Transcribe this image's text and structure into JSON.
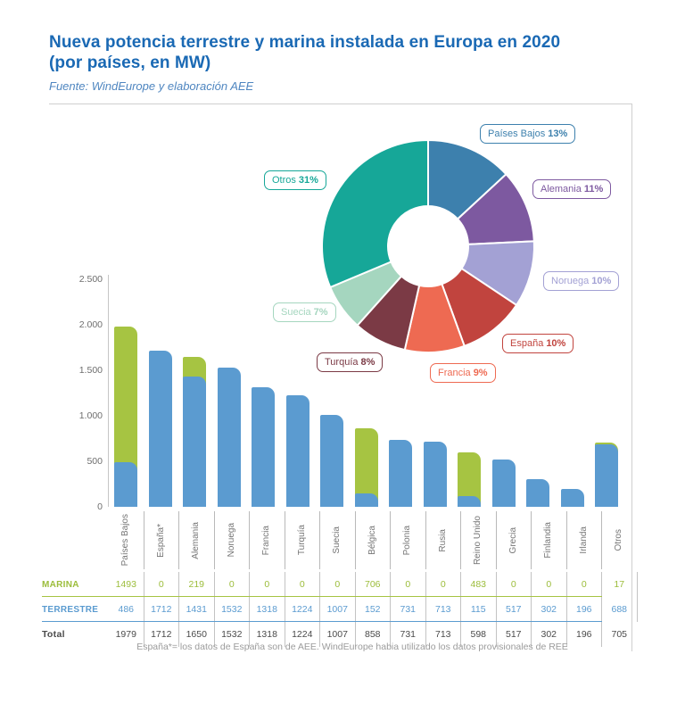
{
  "header": {
    "title_line1": "Nueva potencia terrestre y marina instalada en Europa en 2020",
    "title_line2": "(por países, en MW)",
    "source": "Fuente: WindEurope y elaboración AEE",
    "title_color": "#1a69b4"
  },
  "chart_data": [
    {
      "type": "pie",
      "donut": true,
      "direction": "clockwise",
      "start_angle_deg": 0,
      "slices": [
        {
          "name": "Países Bajos",
          "value": 13,
          "pct_label": "13%",
          "color": "#3d80ad"
        },
        {
          "name": "Alemania",
          "value": 11,
          "pct_label": "11%",
          "color": "#7d59a0"
        },
        {
          "name": "Noruega",
          "value": 10,
          "pct_label": "10%",
          "color": "#a3a1d4"
        },
        {
          "name": "España",
          "value": 10,
          "pct_label": "10%",
          "color": "#c1443e"
        },
        {
          "name": "Francia",
          "value": 9,
          "pct_label": "9%",
          "color": "#ee6a52"
        },
        {
          "name": "Turquía",
          "value": 8,
          "pct_label": "8%",
          "color": "#7b3a45"
        },
        {
          "name": "Suecia",
          "value": 7,
          "pct_label": "7%",
          "color": "#a5d6bf"
        },
        {
          "name": "Otros",
          "value": 31,
          "pct_label": "31%",
          "color": "#16a798"
        }
      ]
    },
    {
      "type": "bar",
      "stacked": true,
      "categories": [
        "Países Bajos",
        "España*",
        "Alemania",
        "Noruega",
        "Francia",
        "Turquía",
        "Suecia",
        "Bélgica",
        "Polonia",
        "Rusia",
        "Reino Unido",
        "Grecia",
        "Finlandia",
        "Irlanda",
        "Otros"
      ],
      "series": [
        {
          "name": "MARINA",
          "color": "#a6c442",
          "text_color": "#9cbd3b",
          "values": [
            1493,
            0,
            219,
            0,
            0,
            0,
            0,
            706,
            0,
            0,
            483,
            0,
            0,
            0,
            17
          ]
        },
        {
          "name": "TERRESTRE",
          "color": "#5b9bd0",
          "text_color": "#5b9bd0",
          "values": [
            486,
            1712,
            1431,
            1532,
            1318,
            1224,
            1007,
            152,
            731,
            713,
            115,
            517,
            302,
            196,
            688
          ]
        }
      ],
      "totals": [
        1979,
        1712,
        1650,
        1532,
        1318,
        1224,
        1007,
        858,
        731,
        713,
        598,
        517,
        302,
        196,
        705
      ],
      "ylim": [
        0,
        2500
      ],
      "ytick_labels": [
        "0",
        "500",
        "1.000",
        "1.500",
        "2.000",
        "2.500"
      ],
      "grid": false,
      "legend_position": "table-below"
    }
  ],
  "table": {
    "row_labels": [
      "MARINA",
      "TERRESTRE",
      "Total"
    ],
    "total_label": "Total",
    "total_color": "#4a4a4a",
    "grid_color": "#c3c3c3"
  },
  "footnote": "España*= los datos de España son de AEE. WindEurope habia utilizado los datos provisionales de REE"
}
